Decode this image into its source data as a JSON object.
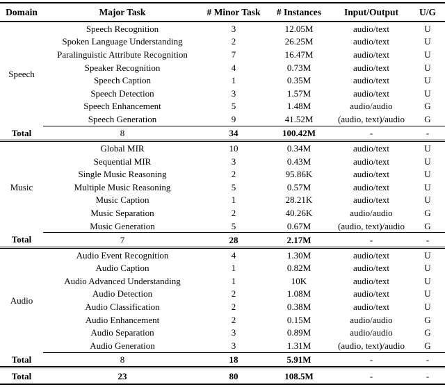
{
  "table": {
    "columns": [
      "Domain",
      "Major Task",
      "# Minor Task",
      "# Instances",
      "Input/Output",
      "U/G"
    ],
    "total_label": "Total",
    "sections": [
      {
        "domain": "Speech",
        "rows": [
          {
            "major_task": "Speech Recognition",
            "minor_tasks": "3",
            "instances": "12.05M",
            "io": "audio/text",
            "ug": "U"
          },
          {
            "major_task": "Spoken Language Understanding",
            "minor_tasks": "2",
            "instances": "26.25M",
            "io": "audio/text",
            "ug": "U"
          },
          {
            "major_task": "Paralinguistic Attribute Recognition",
            "minor_tasks": "7",
            "instances": "16.47M",
            "io": "audio/text",
            "ug": "U"
          },
          {
            "major_task": "Speaker Recognition",
            "minor_tasks": "4",
            "instances": "0.73M",
            "io": "audio/text",
            "ug": "U"
          },
          {
            "major_task": "Speech Caption",
            "minor_tasks": "1",
            "instances": "0.35M",
            "io": "audio/text",
            "ug": "U"
          },
          {
            "major_task": "Speech Detection",
            "minor_tasks": "3",
            "instances": "1.57M",
            "io": "audio/text",
            "ug": "U"
          },
          {
            "major_task": "Speech Enhancement",
            "minor_tasks": "5",
            "instances": "1.48M",
            "io": "audio/audio",
            "ug": "G"
          },
          {
            "major_task": "Speech Generation",
            "minor_tasks": "9",
            "instances": "41.52M",
            "io": "(audio, text)/audio",
            "ug": "G"
          }
        ],
        "total": {
          "label": "Total",
          "major_tasks": "8",
          "minor_tasks": "34",
          "instances": "100.42M",
          "io": "-",
          "ug": "-"
        }
      },
      {
        "domain": "Music",
        "rows": [
          {
            "major_task": "Global MIR",
            "minor_tasks": "10",
            "instances": "0.34M",
            "io": "audio/text",
            "ug": "U"
          },
          {
            "major_task": "Sequential MIR",
            "minor_tasks": "3",
            "instances": "0.43M",
            "io": "audio/text",
            "ug": "U"
          },
          {
            "major_task": "Single Music Reasoning",
            "minor_tasks": "2",
            "instances": "95.86K",
            "io": "audio/text",
            "ug": "U"
          },
          {
            "major_task": "Multiple Music Reasoning",
            "minor_tasks": "5",
            "instances": "0.57M",
            "io": "audio/text",
            "ug": "U"
          },
          {
            "major_task": "Music Caption",
            "minor_tasks": "1",
            "instances": "28.21K",
            "io": "audio/text",
            "ug": "U"
          },
          {
            "major_task": "Music Separation",
            "minor_tasks": "2",
            "instances": "40.26K",
            "io": "audio/audio",
            "ug": "G"
          },
          {
            "major_task": "Music Generation",
            "minor_tasks": "5",
            "instances": "0.67M",
            "io": "(audio, text)/audio",
            "ug": "G"
          }
        ],
        "total": {
          "label": "Total",
          "major_tasks": "7",
          "minor_tasks": "28",
          "instances": "2.17M",
          "io": "-",
          "ug": "-"
        }
      },
      {
        "domain": "Audio",
        "rows": [
          {
            "major_task": "Audio Event Recognition",
            "minor_tasks": "4",
            "instances": "1.30M",
            "io": "audio/text",
            "ug": "U"
          },
          {
            "major_task": "Audio Caption",
            "minor_tasks": "1",
            "instances": "0.82M",
            "io": "audio/text",
            "ug": "U"
          },
          {
            "major_task": "Audio Advanced Understanding",
            "minor_tasks": "1",
            "instances": "10K",
            "io": "audio/text",
            "ug": "U"
          },
          {
            "major_task": "Audio Detection",
            "minor_tasks": "2",
            "instances": "1.08M",
            "io": "audio/text",
            "ug": "U"
          },
          {
            "major_task": "Audio Classification",
            "minor_tasks": "2",
            "instances": "0.38M",
            "io": "audio/text",
            "ug": "U"
          },
          {
            "major_task": "Audio Enhancement",
            "minor_tasks": "2",
            "instances": "0.15M",
            "io": "audio/audio",
            "ug": "G"
          },
          {
            "major_task": "Audio Separation",
            "minor_tasks": "3",
            "instances": "0.89M",
            "io": "audio/audio",
            "ug": "G"
          },
          {
            "major_task": "Audio Generation",
            "minor_tasks": "3",
            "instances": "1.31M",
            "io": "(audio, text)/audio",
            "ug": "G"
          }
        ],
        "total": {
          "label": "Total",
          "major_tasks": "8",
          "minor_tasks": "18",
          "instances": "5.91M",
          "io": "-",
          "ug": "-"
        }
      }
    ],
    "grand_total": {
      "label": "Total",
      "major_tasks": "23",
      "minor_tasks": "80",
      "instances": "108.5M",
      "io": "-",
      "ug": "-"
    }
  }
}
